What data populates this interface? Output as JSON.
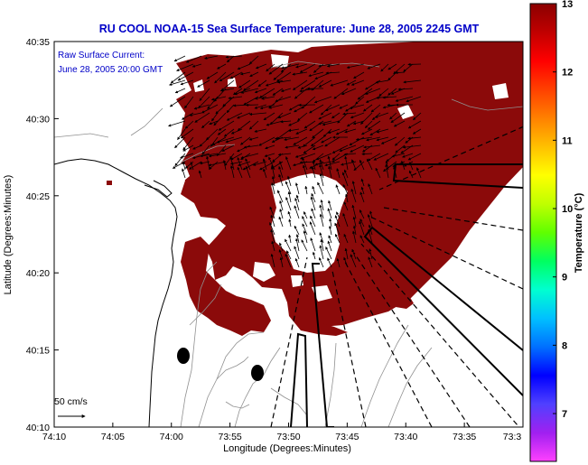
{
  "title": "RU COOL  NOAA-15  Sea Surface Temperature:  June 28, 2005 2245 GMT",
  "current_note": {
    "line1": "Raw Surface Current:",
    "line2": "June 28, 2005 20:00 GMT"
  },
  "axes": {
    "xlabel": "Longitude (Degrees:Minutes)",
    "ylabel": "Latitude (Degrees:Minutes)",
    "x_ticks": [
      "74:10",
      "74:05",
      "74:00",
      "73:55",
      "73:50",
      "73:45",
      "73:40",
      "73:35",
      "73:3"
    ],
    "y_ticks": [
      "40:35",
      "40:30",
      "40:25",
      "40:20",
      "40:15",
      "40:10"
    ]
  },
  "scale": {
    "label": "50 cm/s"
  },
  "colorbar": {
    "label": "Temperature (°C)",
    "ticks": [
      "13",
      "12",
      "11",
      "10",
      "9",
      "8",
      "7"
    ],
    "min": 6.3,
    "max": 13,
    "colors": [
      "#ff40ff",
      "#a020f0",
      "#5040ff",
      "#0000ff",
      "#0070ff",
      "#00c0ff",
      "#00ffd0",
      "#00ff60",
      "#60ff00",
      "#c0ff00",
      "#ffff00",
      "#ffc000",
      "#ff8000",
      "#ff4000",
      "#ff0000",
      "#c00000",
      "#8b0000"
    ]
  },
  "colors": {
    "sst": "#8b0a0a",
    "title": "#0000c8",
    "land": "#ffffff"
  }
}
